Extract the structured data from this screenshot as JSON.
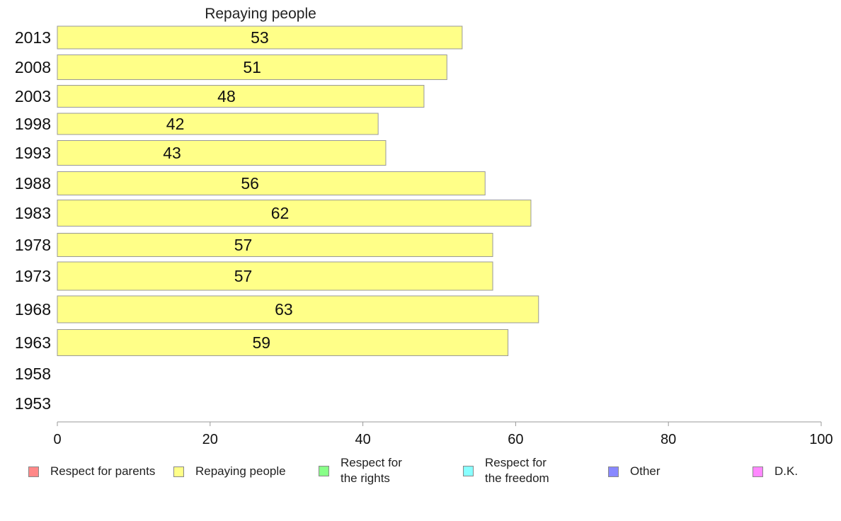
{
  "chart_data": {
    "type": "bar",
    "orientation": "horizontal",
    "title": "Repaying people",
    "categories": [
      "2013",
      "2008",
      "2003",
      "1998",
      "1993",
      "1988",
      "1983",
      "1978",
      "1973",
      "1968",
      "1963",
      "1958",
      "1953"
    ],
    "series": [
      {
        "name": "Repaying people",
        "color": "#ffff88",
        "values": [
          53,
          51,
          48,
          42,
          43,
          56,
          62,
          57,
          57,
          63,
          59,
          null,
          null
        ],
        "value_labels": [
          "53",
          "51",
          "48",
          "42",
          "43",
          "56",
          "62",
          "57",
          "57",
          "63",
          "59",
          "",
          ""
        ]
      }
    ],
    "xlim": [
      0,
      100
    ],
    "xticks": [
      "0",
      "20",
      "40",
      "60",
      "80",
      "100"
    ],
    "grid": false,
    "legend": {
      "placement": "bottom",
      "items": [
        {
          "label": "Respect for parents",
          "color": "#ff8888"
        },
        {
          "label": "Repaying people",
          "color": "#ffff88"
        },
        {
          "label": "Respect for\nthe rights",
          "color": "#88ff88"
        },
        {
          "label": "Respect for\nthe freedom",
          "color": "#88ffff"
        },
        {
          "label": "Other",
          "color": "#8888ff"
        },
        {
          "label": "D.K.",
          "color": "#ff88ff"
        }
      ]
    }
  }
}
